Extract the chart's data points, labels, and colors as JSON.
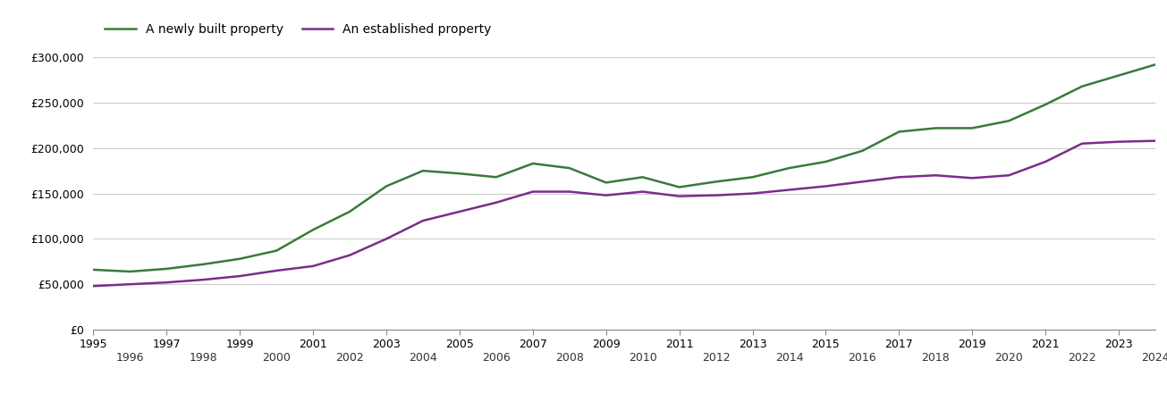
{
  "years": [
    1995,
    1996,
    1997,
    1998,
    1999,
    2000,
    2001,
    2002,
    2003,
    2004,
    2005,
    2006,
    2007,
    2008,
    2009,
    2010,
    2011,
    2012,
    2013,
    2014,
    2015,
    2016,
    2017,
    2018,
    2019,
    2020,
    2021,
    2022,
    2023,
    2024
  ],
  "new_build": [
    66000,
    64000,
    67000,
    72000,
    78000,
    87000,
    110000,
    130000,
    158000,
    175000,
    172000,
    168000,
    183000,
    178000,
    162000,
    168000,
    157000,
    163000,
    168000,
    178000,
    185000,
    197000,
    218000,
    222000,
    222000,
    230000,
    248000,
    268000,
    280000,
    292000
  ],
  "established": [
    48000,
    50000,
    52000,
    55000,
    59000,
    65000,
    70000,
    82000,
    100000,
    120000,
    130000,
    140000,
    152000,
    152000,
    148000,
    152000,
    147000,
    148000,
    150000,
    154000,
    158000,
    163000,
    168000,
    170000,
    167000,
    170000,
    185000,
    205000,
    207000,
    208000
  ],
  "new_build_color": "#3a7a3a",
  "established_color": "#7b2d8b",
  "legend_new": "A newly built property",
  "legend_est": "An established property",
  "ylim": [
    0,
    310000
  ],
  "yticks": [
    0,
    50000,
    100000,
    150000,
    200000,
    250000,
    300000
  ],
  "background_color": "#ffffff",
  "grid_color": "#cccccc",
  "line_width": 1.8,
  "odd_years": [
    1995,
    1997,
    1999,
    2001,
    2003,
    2005,
    2007,
    2009,
    2011,
    2013,
    2015,
    2017,
    2019,
    2021,
    2023
  ],
  "even_years": [
    1996,
    1998,
    2000,
    2002,
    2004,
    2006,
    2008,
    2010,
    2012,
    2014,
    2016,
    2018,
    2020,
    2022,
    2024
  ]
}
